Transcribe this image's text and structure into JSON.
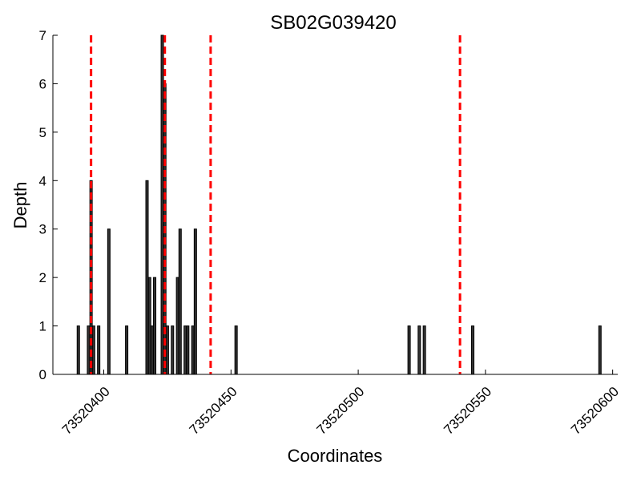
{
  "chart_data": {
    "type": "bar",
    "title": "SB02G039420",
    "xlabel": "Coordinates",
    "ylabel": "Depth",
    "xlim": [
      73520380,
      73520602
    ],
    "ylim": [
      0,
      7
    ],
    "x_ticks": [
      73520400,
      73520450,
      73520500,
      73520550,
      73520600
    ],
    "x_tick_labels": [
      "73520400",
      "73520450",
      "73520500",
      "73520550",
      "73520600"
    ],
    "y_ticks": [
      0,
      1,
      2,
      3,
      4,
      5,
      6,
      7
    ],
    "y_tick_labels": [
      "0",
      "1",
      "2",
      "3",
      "4",
      "5",
      "6",
      "7"
    ],
    "bar_fill": "#333333",
    "bar_edge": "#000000",
    "series": [
      {
        "name": "depth",
        "x": [
          73520390,
          73520394,
          73520395,
          73520396,
          73520398,
          73520402,
          73520409,
          73520417,
          73520418,
          73520419,
          73520420,
          73520423,
          73520424,
          73520425,
          73520427,
          73520429,
          73520430,
          73520432,
          73520433,
          73520435,
          73520436,
          73520452,
          73520520,
          73520524,
          73520526,
          73520545,
          73520595
        ],
        "values": [
          1,
          1,
          4,
          1,
          1,
          3,
          1,
          4,
          2,
          1,
          2,
          7,
          6,
          1,
          1,
          2,
          3,
          1,
          1,
          1,
          3,
          1,
          1,
          1,
          1,
          1,
          1
        ]
      }
    ],
    "reference_lines": {
      "style": "dashed",
      "color": "#ff0000",
      "x": [
        73520395,
        73520424,
        73520442,
        73520540
      ]
    }
  }
}
